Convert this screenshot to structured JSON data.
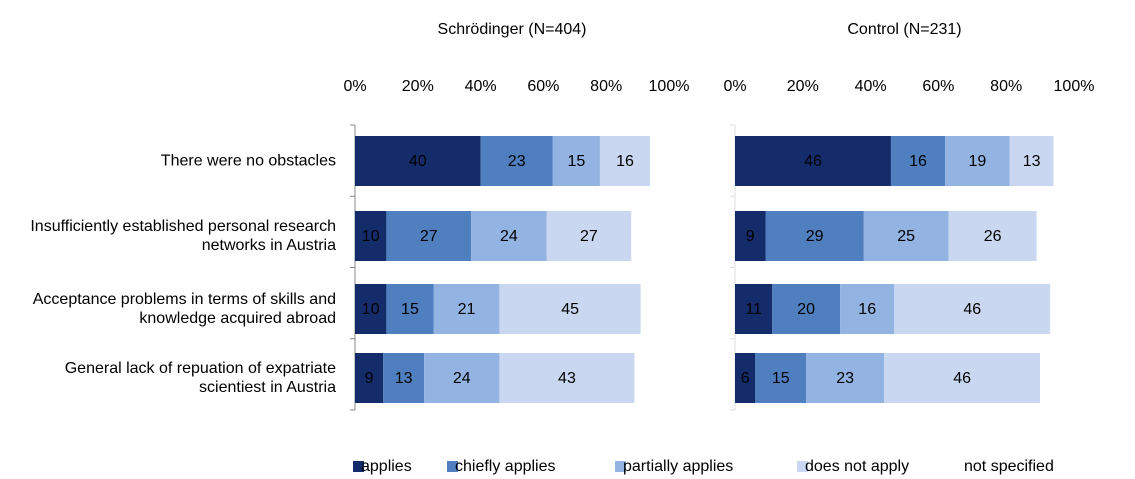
{
  "chart_data": [
    {
      "type": "bar",
      "orientation": "horizontal",
      "stacked": true,
      "title": "Schrödinger (N=404)",
      "categories": [
        "There were no obstacles",
        "Insufficiently established personal research networks in Austria",
        "Acceptance problems in terms of skills and knowledge acquired abroad",
        "General lack of repuation of expatriate scientiest in Austria"
      ],
      "series": [
        {
          "name": "applies",
          "color": "#152c6b",
          "label_color": "#ffffff",
          "values": [
            40,
            10,
            10,
            9
          ]
        },
        {
          "name": "chiefly applies",
          "color": "#4f7fbf",
          "label_color": "#ffffff",
          "values": [
            23,
            27,
            15,
            13
          ]
        },
        {
          "name": "partially applies",
          "color": "#93b3e2",
          "label_color": "#000000",
          "values": [
            15,
            24,
            21,
            24
          ]
        },
        {
          "name": "does not apply",
          "color": "#c9d8f0",
          "label_color": "#000000",
          "values": [
            16,
            27,
            45,
            43
          ]
        },
        {
          "name": "not specified",
          "color": "#ffffff",
          "values": [
            6,
            12,
            9,
            11
          ]
        }
      ],
      "xlim": [
        0,
        100
      ],
      "xticks": [
        {
          "value": 0,
          "label": "0%"
        },
        {
          "value": 20,
          "label": "20%"
        },
        {
          "value": 40,
          "label": "40%"
        },
        {
          "value": 60,
          "label": "60%"
        },
        {
          "value": 80,
          "label": "80%"
        },
        {
          "value": 100,
          "label": "100%"
        }
      ],
      "legend": "bottom"
    },
    {
      "type": "bar",
      "orientation": "horizontal",
      "stacked": true,
      "title": "Control (N=231)",
      "series": [
        {
          "values": [
            46,
            9,
            11,
            6
          ]
        },
        {
          "values": [
            16,
            29,
            20,
            15
          ]
        },
        {
          "values": [
            19,
            25,
            16,
            23
          ]
        },
        {
          "values": [
            13,
            26,
            46,
            46
          ]
        },
        {
          "values": [
            6,
            11,
            7,
            10
          ]
        }
      ],
      "xlim": [
        0,
        100
      ],
      "xticks": [
        {
          "value": 0,
          "label": "0%"
        },
        {
          "value": 20,
          "label": "20%"
        },
        {
          "value": 40,
          "label": "40%"
        },
        {
          "value": 60,
          "label": "60%"
        },
        {
          "value": 80,
          "label": "80%"
        },
        {
          "value": 100,
          "label": "100%"
        }
      ]
    }
  ]
}
